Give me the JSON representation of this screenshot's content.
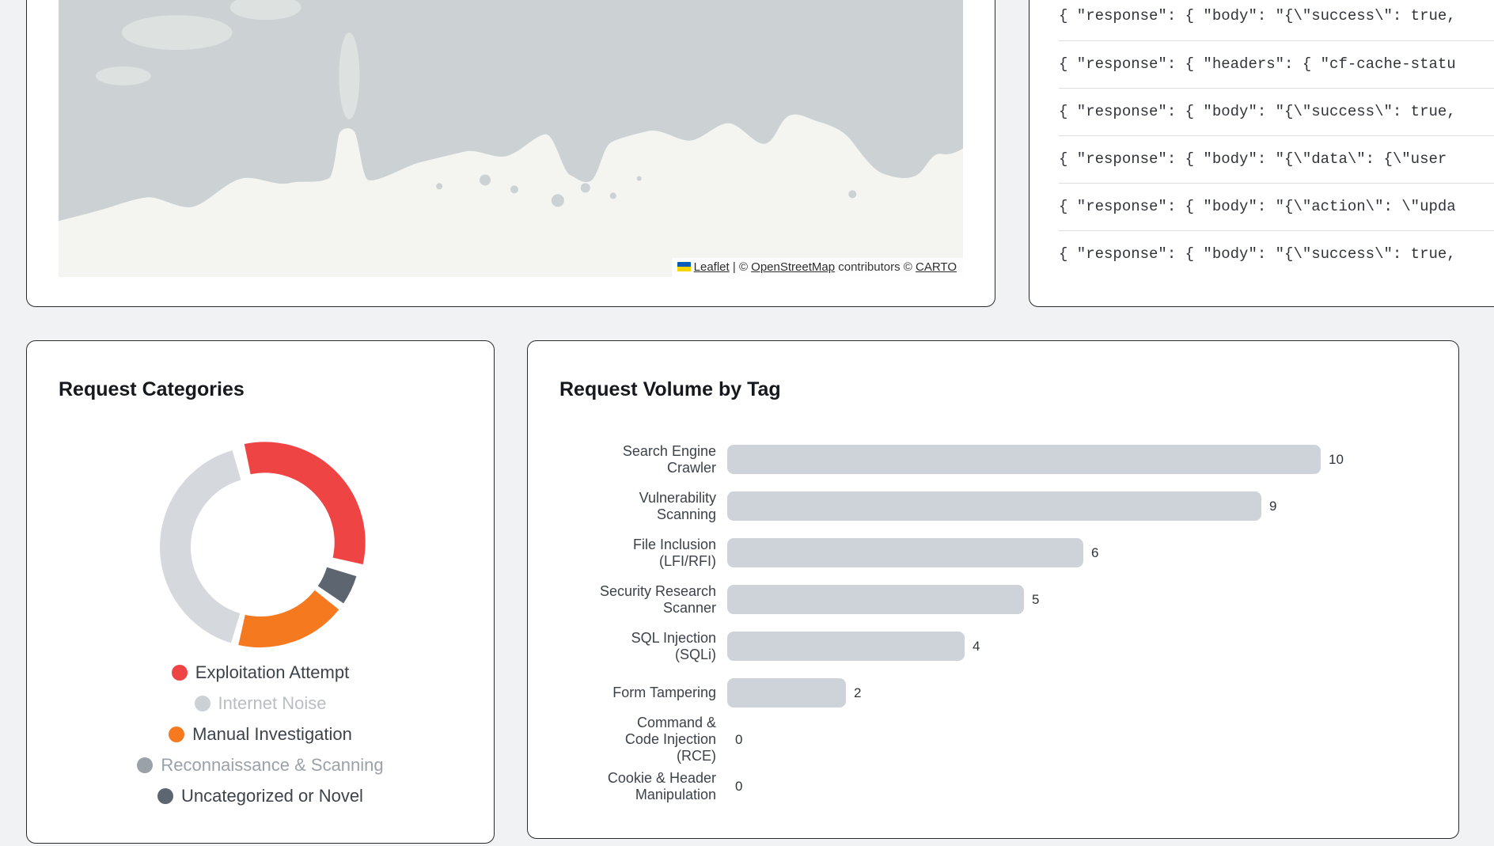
{
  "page": {
    "background": "#f1f2f4",
    "panel_border": "#2a2a2a"
  },
  "map_panel": {
    "attribution": {
      "leaflet": "Leaflet",
      "sep": "|",
      "osm_prefix": "©",
      "osm": "OpenStreetMap",
      "osm_suffix": "contributors",
      "carto_prefix": "©",
      "carto": "CARTO"
    },
    "water_color": "#ccd2d4",
    "land_color": "#f4f4f1"
  },
  "log_panel": {
    "rows": [
      "{ \"response\": { \"body\": \"{\\\"success\\\": true,",
      "{ \"response\": { \"headers\": { \"cf-cache-statu",
      "{ \"response\": { \"body\": \"{\\\"success\\\": true,",
      "{ \"response\": { \"body\": \"{\\\"data\\\": {\\\"user",
      "{ \"response\": { \"body\": \"{\\\"action\\\": \\\"upda",
      "{ \"response\": { \"body\": \"{\\\"success\\\": true,"
    ]
  },
  "chart_data": [
    {
      "type": "pie",
      "variant": "doughnut",
      "title": "Request Categories",
      "start_angle_deg": -14,
      "segments": [
        {
          "label": "Exploitation Attempt",
          "pct": 33,
          "color": "#ef4444",
          "offset": true
        },
        {
          "label": "Uncategorized or Novel",
          "pct": 6,
          "color": "#5d6570",
          "offset": false
        },
        {
          "label": "Manual Investigation",
          "pct": 19,
          "color": "#f4791f",
          "offset": false
        },
        {
          "label": "Internet Noise",
          "pct": 42,
          "color": "#d5d8dc",
          "offset": false
        }
      ],
      "legend_position": "bottom",
      "legend": [
        {
          "label": "Exploitation Attempt",
          "color": "#ef4444",
          "dimmed": false,
          "text_color": "#3d434b"
        },
        {
          "label": "Internet Noise",
          "color": "#ccd1d6",
          "dimmed": true,
          "text_color": "#b9bec5"
        },
        {
          "label": "Manual Investigation",
          "color": "#f4791f",
          "dimmed": false,
          "text_color": "#3d434b"
        },
        {
          "label": "Reconnaissance & Scanning",
          "color": "#9aa1a8",
          "dimmed": true,
          "text_color": "#9aa1a8"
        },
        {
          "label": "Uncategorized or Novel",
          "color": "#5d6570",
          "dimmed": false,
          "text_color": "#3d434b"
        }
      ]
    },
    {
      "type": "bar",
      "orientation": "horizontal",
      "title": "Request Volume by Tag",
      "categories": [
        "Search Engine Crawler",
        "Vulnerability Scanning",
        "File Inclusion (LFI/RFI)",
        "Security Research Scanner",
        "SQL Injection (SQLi)",
        "Form Tampering",
        "Command & Code Injection (RCE)",
        "Cookie & Header Manipulation"
      ],
      "category_lines": [
        [
          "Search Engine",
          "Crawler"
        ],
        [
          "Vulnerability",
          "Scanning"
        ],
        [
          "File Inclusion",
          "(LFI/RFI)"
        ],
        [
          "Security Research",
          "Scanner"
        ],
        [
          "SQL Injection",
          "(SQLi)"
        ],
        [
          "Form Tampering"
        ],
        [
          "Command &",
          "Code Injection",
          "(RCE)"
        ],
        [
          "Cookie & Header",
          "Manipulation"
        ]
      ],
      "values": [
        10,
        9,
        6,
        5,
        4,
        2,
        0,
        0
      ],
      "xlim": [
        0,
        10
      ],
      "bar_color": "#ced3da",
      "value_label_color": "#2f343a",
      "grid": false
    }
  ]
}
